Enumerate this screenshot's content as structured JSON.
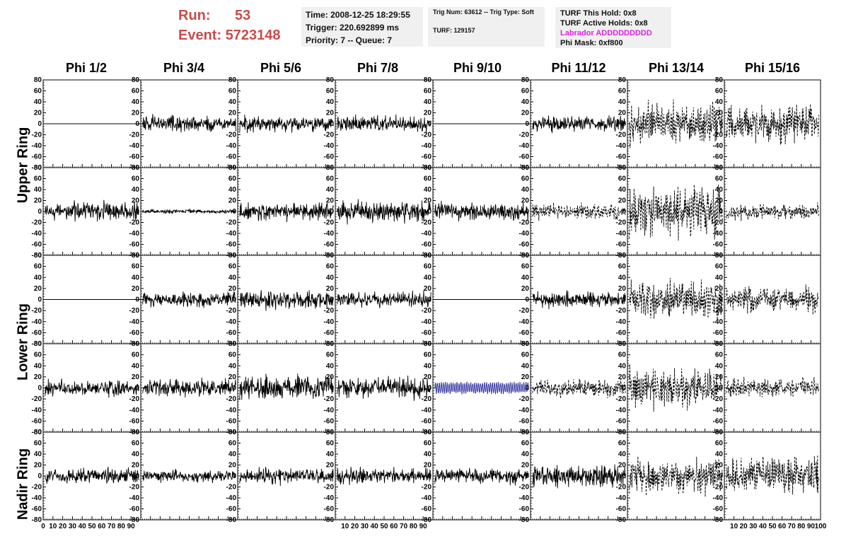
{
  "header": {
    "run_label": "Run:",
    "run_value": "53",
    "event_label": "Event:",
    "event_value": "5723148",
    "time": "Time: 2008-12-25 18:29:55",
    "trigger": "Trigger: 220.692899 ms",
    "priority": "Priority: 7 -- Queue: 7",
    "trig_num": "Trig Num: 63612 -- Trig Type: Soft",
    "turf": "TURF: 129157",
    "turf_this_hold": "TURF This Hold: 0x8",
    "turf_active_holds": "TURF Active Holds: 0x8",
    "labrador": "Labrador ADDDDDDDDD",
    "phi_mask": "Phi Mask: 0xf800"
  },
  "columns": [
    "Phi 1/2",
    "Phi 3/4",
    "Phi 5/6",
    "Phi 7/8",
    "Phi 9/10",
    "Phi 11/12",
    "Phi 13/14",
    "Phi 15/16"
  ],
  "rings": [
    {
      "label": "Upper Ring",
      "rows": [
        0,
        1
      ]
    },
    {
      "label": "Lower Ring",
      "rows": [
        2,
        3
      ]
    },
    {
      "label": "Nadir Ring",
      "rows": [
        4
      ]
    }
  ],
  "colors": {
    "run_text": "#c84c4c",
    "labrador_text": "#e020e0",
    "highlight_trace": "#2a2a9a",
    "trace": "#000000"
  },
  "chart_data": {
    "type": "line",
    "xlim": [
      0,
      100
    ],
    "ylim": [
      -80,
      80
    ],
    "x_ticks": [
      0,
      10,
      20,
      30,
      40,
      50,
      60,
      70,
      80,
      90,
      100
    ],
    "y_ticks": [
      -80,
      -60,
      -40,
      -20,
      0,
      20,
      40,
      60,
      80
    ],
    "x_tick_label_groups": [
      [
        "0",
        "10",
        "20",
        "30",
        "40",
        "50",
        "60",
        "70",
        "80",
        "90"
      ],
      [
        "10",
        "20",
        "30",
        "40",
        "50",
        "60",
        "70",
        "80",
        "90"
      ],
      [
        "10",
        "20",
        "30",
        "40",
        "50",
        "60",
        "70",
        "80",
        "90",
        "100"
      ]
    ],
    "y_tick_labels": [
      "80",
      "60",
      "40",
      "20",
      "0",
      "-20",
      "-40",
      "-60",
      "-80"
    ],
    "grid": false,
    "panels": [
      [
        {
          "amp": 0,
          "style": "flat"
        },
        {
          "amp": 12,
          "style": "solid"
        },
        {
          "amp": 12,
          "style": "solid"
        },
        {
          "amp": 12,
          "style": "solid"
        },
        {
          "amp": 0,
          "style": "flat"
        },
        {
          "amp": 12,
          "style": "solid"
        },
        {
          "amp": 32,
          "style": "dashed"
        },
        {
          "amp": 30,
          "style": "dashed"
        }
      ],
      [
        {
          "amp": 14,
          "style": "solid"
        },
        {
          "amp": 3,
          "style": "solid"
        },
        {
          "amp": 14,
          "style": "solid"
        },
        {
          "amp": 16,
          "style": "solid"
        },
        {
          "amp": 14,
          "style": "solid"
        },
        {
          "amp": 12,
          "style": "dashed"
        },
        {
          "amp": 38,
          "style": "dashed"
        },
        {
          "amp": 12,
          "style": "dashed"
        }
      ],
      [
        {
          "amp": 0,
          "style": "flat"
        },
        {
          "amp": 12,
          "style": "solid"
        },
        {
          "amp": 14,
          "style": "solid"
        },
        {
          "amp": 12,
          "style": "solid"
        },
        {
          "amp": 0,
          "style": "flat"
        },
        {
          "amp": 12,
          "style": "solid"
        },
        {
          "amp": 28,
          "style": "dashed"
        },
        {
          "amp": 20,
          "style": "dashed"
        }
      ],
      [
        {
          "amp": 12,
          "style": "solid"
        },
        {
          "amp": 14,
          "style": "solid"
        },
        {
          "amp": 18,
          "style": "solid"
        },
        {
          "amp": 16,
          "style": "solid"
        },
        {
          "amp": 12,
          "style": "blue"
        },
        {
          "amp": 14,
          "style": "dashed"
        },
        {
          "amp": 30,
          "style": "dashed"
        },
        {
          "amp": 14,
          "style": "dashed"
        }
      ],
      [
        {
          "amp": 12,
          "style": "solid"
        },
        {
          "amp": 9,
          "style": "solid"
        },
        {
          "amp": 12,
          "style": "solid"
        },
        {
          "amp": 12,
          "style": "solid"
        },
        {
          "amp": 12,
          "style": "solid"
        },
        {
          "amp": 18,
          "style": "solid"
        },
        {
          "amp": 28,
          "style": "dashed"
        },
        {
          "amp": 30,
          "style": "dashed"
        }
      ]
    ]
  }
}
